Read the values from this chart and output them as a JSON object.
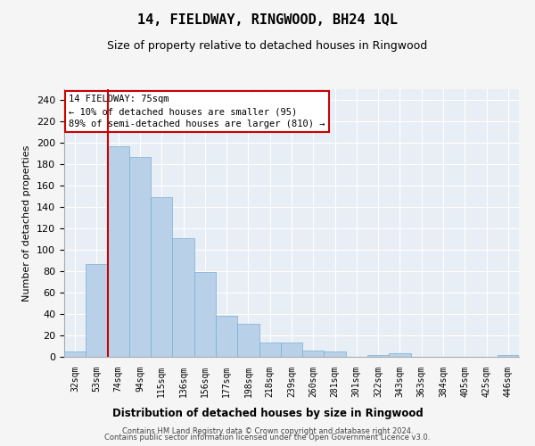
{
  "title": "14, FIELDWAY, RINGWOOD, BH24 1QL",
  "subtitle": "Size of property relative to detached houses in Ringwood",
  "xlabel": "Distribution of detached houses by size in Ringwood",
  "ylabel": "Number of detached properties",
  "bar_color": "#b8d0e8",
  "bar_edge_color": "#7aafd4",
  "categories": [
    "32sqm",
    "53sqm",
    "74sqm",
    "94sqm",
    "115sqm",
    "136sqm",
    "156sqm",
    "177sqm",
    "198sqm",
    "218sqm",
    "239sqm",
    "260sqm",
    "281sqm",
    "301sqm",
    "322sqm",
    "343sqm",
    "363sqm",
    "384sqm",
    "405sqm",
    "425sqm",
    "446sqm"
  ],
  "values": [
    5,
    87,
    197,
    187,
    149,
    111,
    79,
    38,
    31,
    13,
    13,
    6,
    5,
    0,
    2,
    3,
    0,
    0,
    0,
    0,
    2
  ],
  "ylim": [
    0,
    250
  ],
  "yticks": [
    0,
    20,
    40,
    60,
    80,
    100,
    120,
    140,
    160,
    180,
    200,
    220,
    240
  ],
  "vline_color": "#cc0000",
  "annotation_title": "14 FIELDWAY: 75sqm",
  "annotation_line1": "← 10% of detached houses are smaller (95)",
  "annotation_line2": "89% of semi-detached houses are larger (810) →",
  "annotation_box_color": "#ffffff",
  "annotation_box_edge": "#cc0000",
  "footer1": "Contains HM Land Registry data © Crown copyright and database right 2024.",
  "footer2": "Contains public sector information licensed under the Open Government Licence v3.0.",
  "plot_bg_color": "#e8eef5",
  "fig_bg_color": "#f5f5f5",
  "grid_color": "#ffffff"
}
